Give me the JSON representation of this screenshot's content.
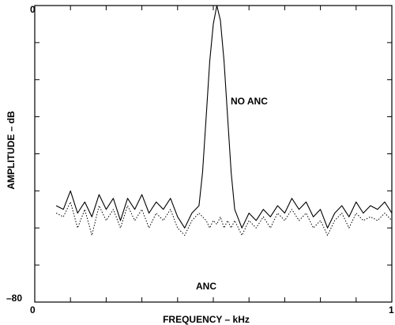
{
  "chart_data": {
    "type": "line",
    "xlabel": "FREQUENCY – kHz",
    "ylabel": "AMPLITUDE – dB",
    "xlim": [
      0,
      1
    ],
    "ylim": [
      -80,
      0
    ],
    "x_tick_labels": [
      "0",
      "1"
    ],
    "y_tick_labels": [
      "0",
      "–80"
    ],
    "grid": false,
    "noise_floor_db": -55,
    "peak_db": 0,
    "peak_x_khz": 0.5,
    "annotations": [
      {
        "text": "NO ANC",
        "x": 0.62,
        "y": -22
      },
      {
        "text": "ANC",
        "x": 0.47,
        "y": -68
      }
    ],
    "series": [
      {
        "name": "NO ANC",
        "style": "solid",
        "color": "#000000",
        "points": [
          [
            0.06,
            -54
          ],
          [
            0.08,
            -55
          ],
          [
            0.1,
            -50
          ],
          [
            0.12,
            -56
          ],
          [
            0.14,
            -53
          ],
          [
            0.16,
            -57
          ],
          [
            0.18,
            -51
          ],
          [
            0.2,
            -55
          ],
          [
            0.22,
            -52
          ],
          [
            0.24,
            -58
          ],
          [
            0.26,
            -52
          ],
          [
            0.28,
            -55
          ],
          [
            0.3,
            -51
          ],
          [
            0.32,
            -56
          ],
          [
            0.34,
            -53
          ],
          [
            0.36,
            -55
          ],
          [
            0.38,
            -52
          ],
          [
            0.4,
            -57
          ],
          [
            0.42,
            -60
          ],
          [
            0.44,
            -56
          ],
          [
            0.46,
            -54
          ],
          [
            0.47,
            -45
          ],
          [
            0.48,
            -30
          ],
          [
            0.49,
            -15
          ],
          [
            0.5,
            -5
          ],
          [
            0.51,
            0
          ],
          [
            0.52,
            -4
          ],
          [
            0.53,
            -15
          ],
          [
            0.54,
            -30
          ],
          [
            0.55,
            -45
          ],
          [
            0.56,
            -55
          ],
          [
            0.58,
            -60
          ],
          [
            0.6,
            -56
          ],
          [
            0.62,
            -58
          ],
          [
            0.64,
            -55
          ],
          [
            0.66,
            -57
          ],
          [
            0.68,
            -54
          ],
          [
            0.7,
            -56
          ],
          [
            0.72,
            -52
          ],
          [
            0.74,
            -55
          ],
          [
            0.76,
            -53
          ],
          [
            0.78,
            -57
          ],
          [
            0.8,
            -55
          ],
          [
            0.82,
            -60
          ],
          [
            0.84,
            -56
          ],
          [
            0.86,
            -54
          ],
          [
            0.88,
            -57
          ],
          [
            0.9,
            -53
          ],
          [
            0.92,
            -56
          ],
          [
            0.94,
            -54
          ],
          [
            0.96,
            -55
          ],
          [
            0.98,
            -53
          ],
          [
            1.0,
            -56
          ]
        ]
      },
      {
        "name": "ANC",
        "style": "dotted",
        "color": "#000000",
        "points": [
          [
            0.06,
            -56
          ],
          [
            0.08,
            -57
          ],
          [
            0.1,
            -53
          ],
          [
            0.12,
            -60
          ],
          [
            0.14,
            -55
          ],
          [
            0.16,
            -62
          ],
          [
            0.18,
            -54
          ],
          [
            0.2,
            -58
          ],
          [
            0.22,
            -55
          ],
          [
            0.24,
            -60
          ],
          [
            0.26,
            -54
          ],
          [
            0.28,
            -58
          ],
          [
            0.3,
            -55
          ],
          [
            0.32,
            -60
          ],
          [
            0.34,
            -56
          ],
          [
            0.36,
            -58
          ],
          [
            0.38,
            -55
          ],
          [
            0.4,
            -60
          ],
          [
            0.42,
            -62
          ],
          [
            0.44,
            -58
          ],
          [
            0.46,
            -56
          ],
          [
            0.47,
            -57
          ],
          [
            0.48,
            -58
          ],
          [
            0.49,
            -60
          ],
          [
            0.5,
            -58
          ],
          [
            0.51,
            -59
          ],
          [
            0.52,
            -57
          ],
          [
            0.53,
            -60
          ],
          [
            0.54,
            -58
          ],
          [
            0.55,
            -60
          ],
          [
            0.56,
            -58
          ],
          [
            0.58,
            -62
          ],
          [
            0.6,
            -58
          ],
          [
            0.62,
            -60
          ],
          [
            0.64,
            -57
          ],
          [
            0.66,
            -60
          ],
          [
            0.68,
            -56
          ],
          [
            0.7,
            -58
          ],
          [
            0.72,
            -55
          ],
          [
            0.74,
            -58
          ],
          [
            0.76,
            -56
          ],
          [
            0.78,
            -60
          ],
          [
            0.8,
            -58
          ],
          [
            0.82,
            -62
          ],
          [
            0.84,
            -58
          ],
          [
            0.86,
            -56
          ],
          [
            0.88,
            -60
          ],
          [
            0.9,
            -56
          ],
          [
            0.92,
            -58
          ],
          [
            0.94,
            -57
          ],
          [
            0.96,
            -58
          ],
          [
            0.98,
            -56
          ],
          [
            1.0,
            -58
          ]
        ]
      }
    ]
  }
}
